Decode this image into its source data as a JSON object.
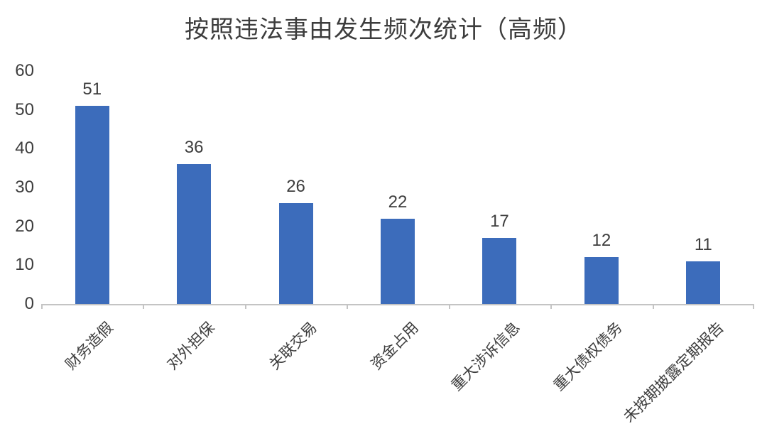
{
  "chart_data": {
    "type": "bar",
    "title": "按照违法事由发生频次统计（高频）",
    "categories": [
      "财务造假",
      "对外担保",
      "关联交易",
      "资金占用",
      "重大涉诉信息",
      "重大债权债务",
      "未按期披露定期报告"
    ],
    "values": [
      51,
      36,
      26,
      22,
      17,
      12,
      11
    ],
    "data_labels": [
      "51",
      "36",
      "26",
      "22",
      "17",
      "12",
      "11"
    ],
    "xlabel": "",
    "ylabel": "",
    "y_ticks": [
      0,
      10,
      20,
      30,
      40,
      50,
      60
    ],
    "ylim": [
      0,
      60
    ],
    "grid": "off",
    "legend": "none",
    "bar_color": "#3c6cbb",
    "axis_color": "#c4c4c4",
    "text_color": "#3d3d3d",
    "background_color": "#ffffff"
  }
}
